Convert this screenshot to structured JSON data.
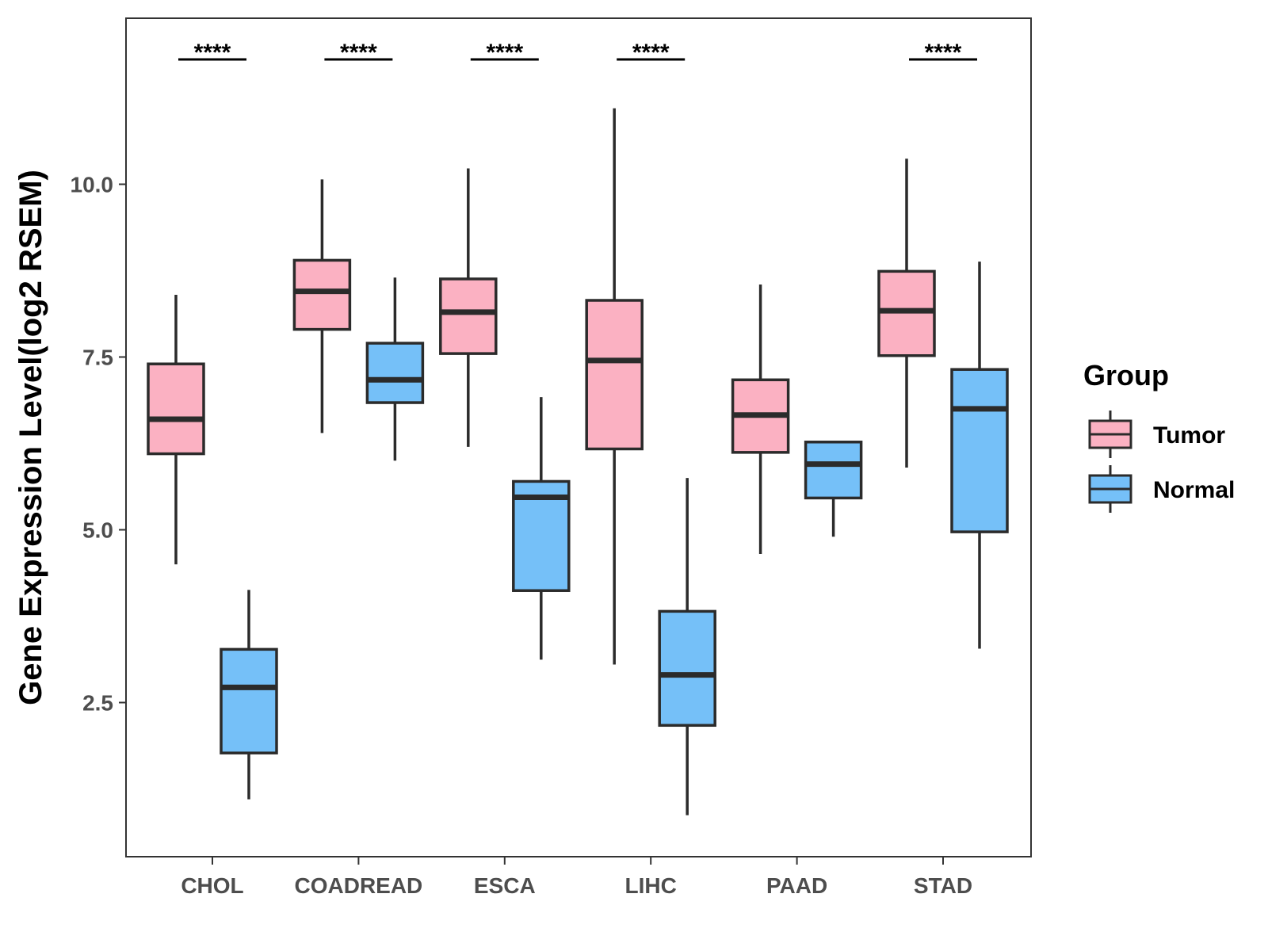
{
  "chart_data": {
    "type": "boxplot",
    "title": "",
    "xlabel": "",
    "ylabel": "Gene Expression Level(log2 RSEM)",
    "ylim": [
      0.35,
      12.5
    ],
    "yticks": [
      2.5,
      5.0,
      7.5,
      10.0
    ],
    "ytick_labels": [
      "2.5",
      "5.0",
      "7.5",
      "10.0"
    ],
    "categories": [
      "CHOL",
      "COADREAD",
      "ESCA",
      "LIHC",
      "PAAD",
      "STAD"
    ],
    "legend": {
      "title": "Group",
      "position": "right",
      "entries": [
        "Tumor",
        "Normal"
      ]
    },
    "series": [
      {
        "name": "Tumor",
        "color": "#FBB1C2",
        "boxes": [
          {
            "category": "CHOL",
            "whisker_low": 4.5,
            "q1": 6.1,
            "median": 6.6,
            "q3": 7.4,
            "whisker_high": 8.4
          },
          {
            "category": "COADREAD",
            "whisker_low": 6.4,
            "q1": 7.9,
            "median": 8.45,
            "q3": 8.9,
            "whisker_high": 10.07
          },
          {
            "category": "ESCA",
            "whisker_low": 6.2,
            "q1": 7.55,
            "median": 8.15,
            "q3": 8.63,
            "whisker_high": 10.23
          },
          {
            "category": "LIHC",
            "whisker_low": 3.05,
            "q1": 6.17,
            "median": 7.45,
            "q3": 8.32,
            "whisker_high": 11.1
          },
          {
            "category": "PAAD",
            "whisker_low": 4.65,
            "q1": 6.12,
            "median": 6.66,
            "q3": 7.17,
            "whisker_high": 8.55
          },
          {
            "category": "STAD",
            "whisker_low": 5.9,
            "q1": 7.52,
            "median": 8.17,
            "q3": 8.74,
            "whisker_high": 10.37
          }
        ]
      },
      {
        "name": "Normal",
        "color": "#75C0F8",
        "boxes": [
          {
            "category": "CHOL",
            "whisker_low": 1.1,
            "q1": 1.77,
            "median": 2.72,
            "q3": 3.27,
            "whisker_high": 4.13
          },
          {
            "category": "COADREAD",
            "whisker_low": 6.0,
            "q1": 6.84,
            "median": 7.17,
            "q3": 7.7,
            "whisker_high": 8.65
          },
          {
            "category": "ESCA",
            "whisker_low": 3.12,
            "q1": 4.12,
            "median": 5.47,
            "q3": 5.7,
            "whisker_high": 6.92
          },
          {
            "category": "LIHC",
            "whisker_low": 0.87,
            "q1": 2.17,
            "median": 2.9,
            "q3": 3.82,
            "whisker_high": 5.75
          },
          {
            "category": "PAAD",
            "whisker_low": 4.9,
            "q1": 5.46,
            "median": 5.95,
            "q3": 6.27,
            "whisker_high": 6.28
          },
          {
            "category": "STAD",
            "whisker_low": 3.28,
            "q1": 4.97,
            "median": 6.75,
            "q3": 7.32,
            "whisker_high": 8.88
          }
        ]
      }
    ],
    "significance": [
      {
        "category": "CHOL",
        "label": "****"
      },
      {
        "category": "COADREAD",
        "label": "****"
      },
      {
        "category": "ESCA",
        "label": "****"
      },
      {
        "category": "LIHC",
        "label": "****"
      },
      {
        "category": "STAD",
        "label": "****"
      }
    ]
  }
}
